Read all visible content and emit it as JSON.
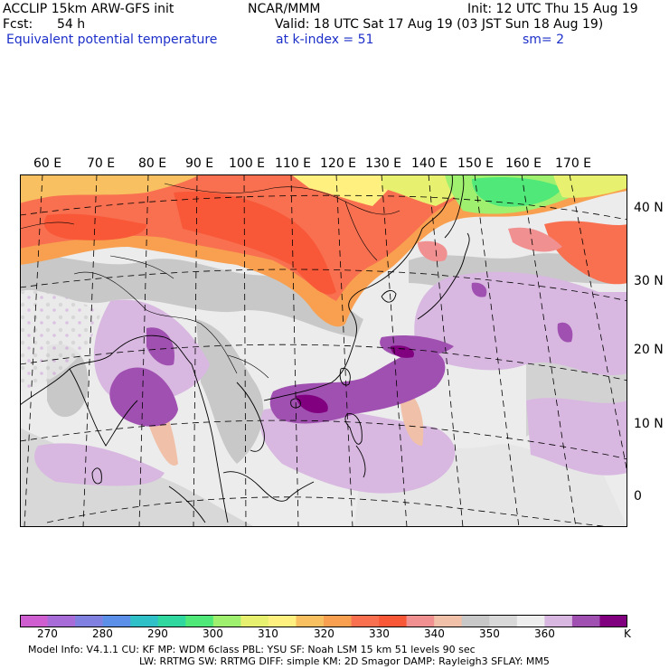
{
  "header": {
    "model": "ACCLIP 15km ARW-GFS init",
    "org": "NCAR/MMM",
    "init": "Init: 12 UTC Thu 15 Aug 19",
    "fcst_label": "Fcst:",
    "fcst_value": "54 h",
    "valid": "Valid: 18 UTC Sat 17 Aug 19 (03 JST Sun 18 Aug 19)",
    "field_name": "Equivalent potential temperature",
    "level": "at k-index =  51",
    "smoothing": "sm= 2"
  },
  "map": {
    "lon_labels": [
      "60 E",
      "70 E",
      "80 E",
      "90 E",
      "100 E",
      "110 E",
      "120 E",
      "130 E",
      "140 E",
      "150 E",
      "160 E",
      "170 E"
    ],
    "lat_labels": [
      "40 N",
      "30 N",
      "20 N",
      "10 N",
      "0"
    ]
  },
  "colorbar": {
    "unit": "K",
    "tick_labels": [
      "270",
      "280",
      "290",
      "300",
      "310",
      "320",
      "330",
      "340",
      "350",
      "360"
    ],
    "colors": [
      "#cf5fd0",
      "#a86cd8",
      "#8080e0",
      "#5c90e8",
      "#30c0c8",
      "#30d8a0",
      "#50e878",
      "#a0f070",
      "#e8f070",
      "#fff080",
      "#f8c060",
      "#f8a050",
      "#f87050",
      "#f85838",
      "#f09090",
      "#f0c0a8",
      "#c8c8c8",
      "#d8d8d8",
      "#eeeeee",
      "#d8b8e0",
      "#a050b0",
      "#800080"
    ]
  },
  "footer": {
    "line1": "Model Info: V4.1.1     CU: KF        MP: WDM 6class  PBL: YSU       SF: Noah LSM    15 km    51 levels   90 sec",
    "line2": "LW: RRTMG    SW: RRTMG    DIFF: simple KM: 2D Smagor DAMP: Rayleigh3  SFLAY: MM5"
  }
}
